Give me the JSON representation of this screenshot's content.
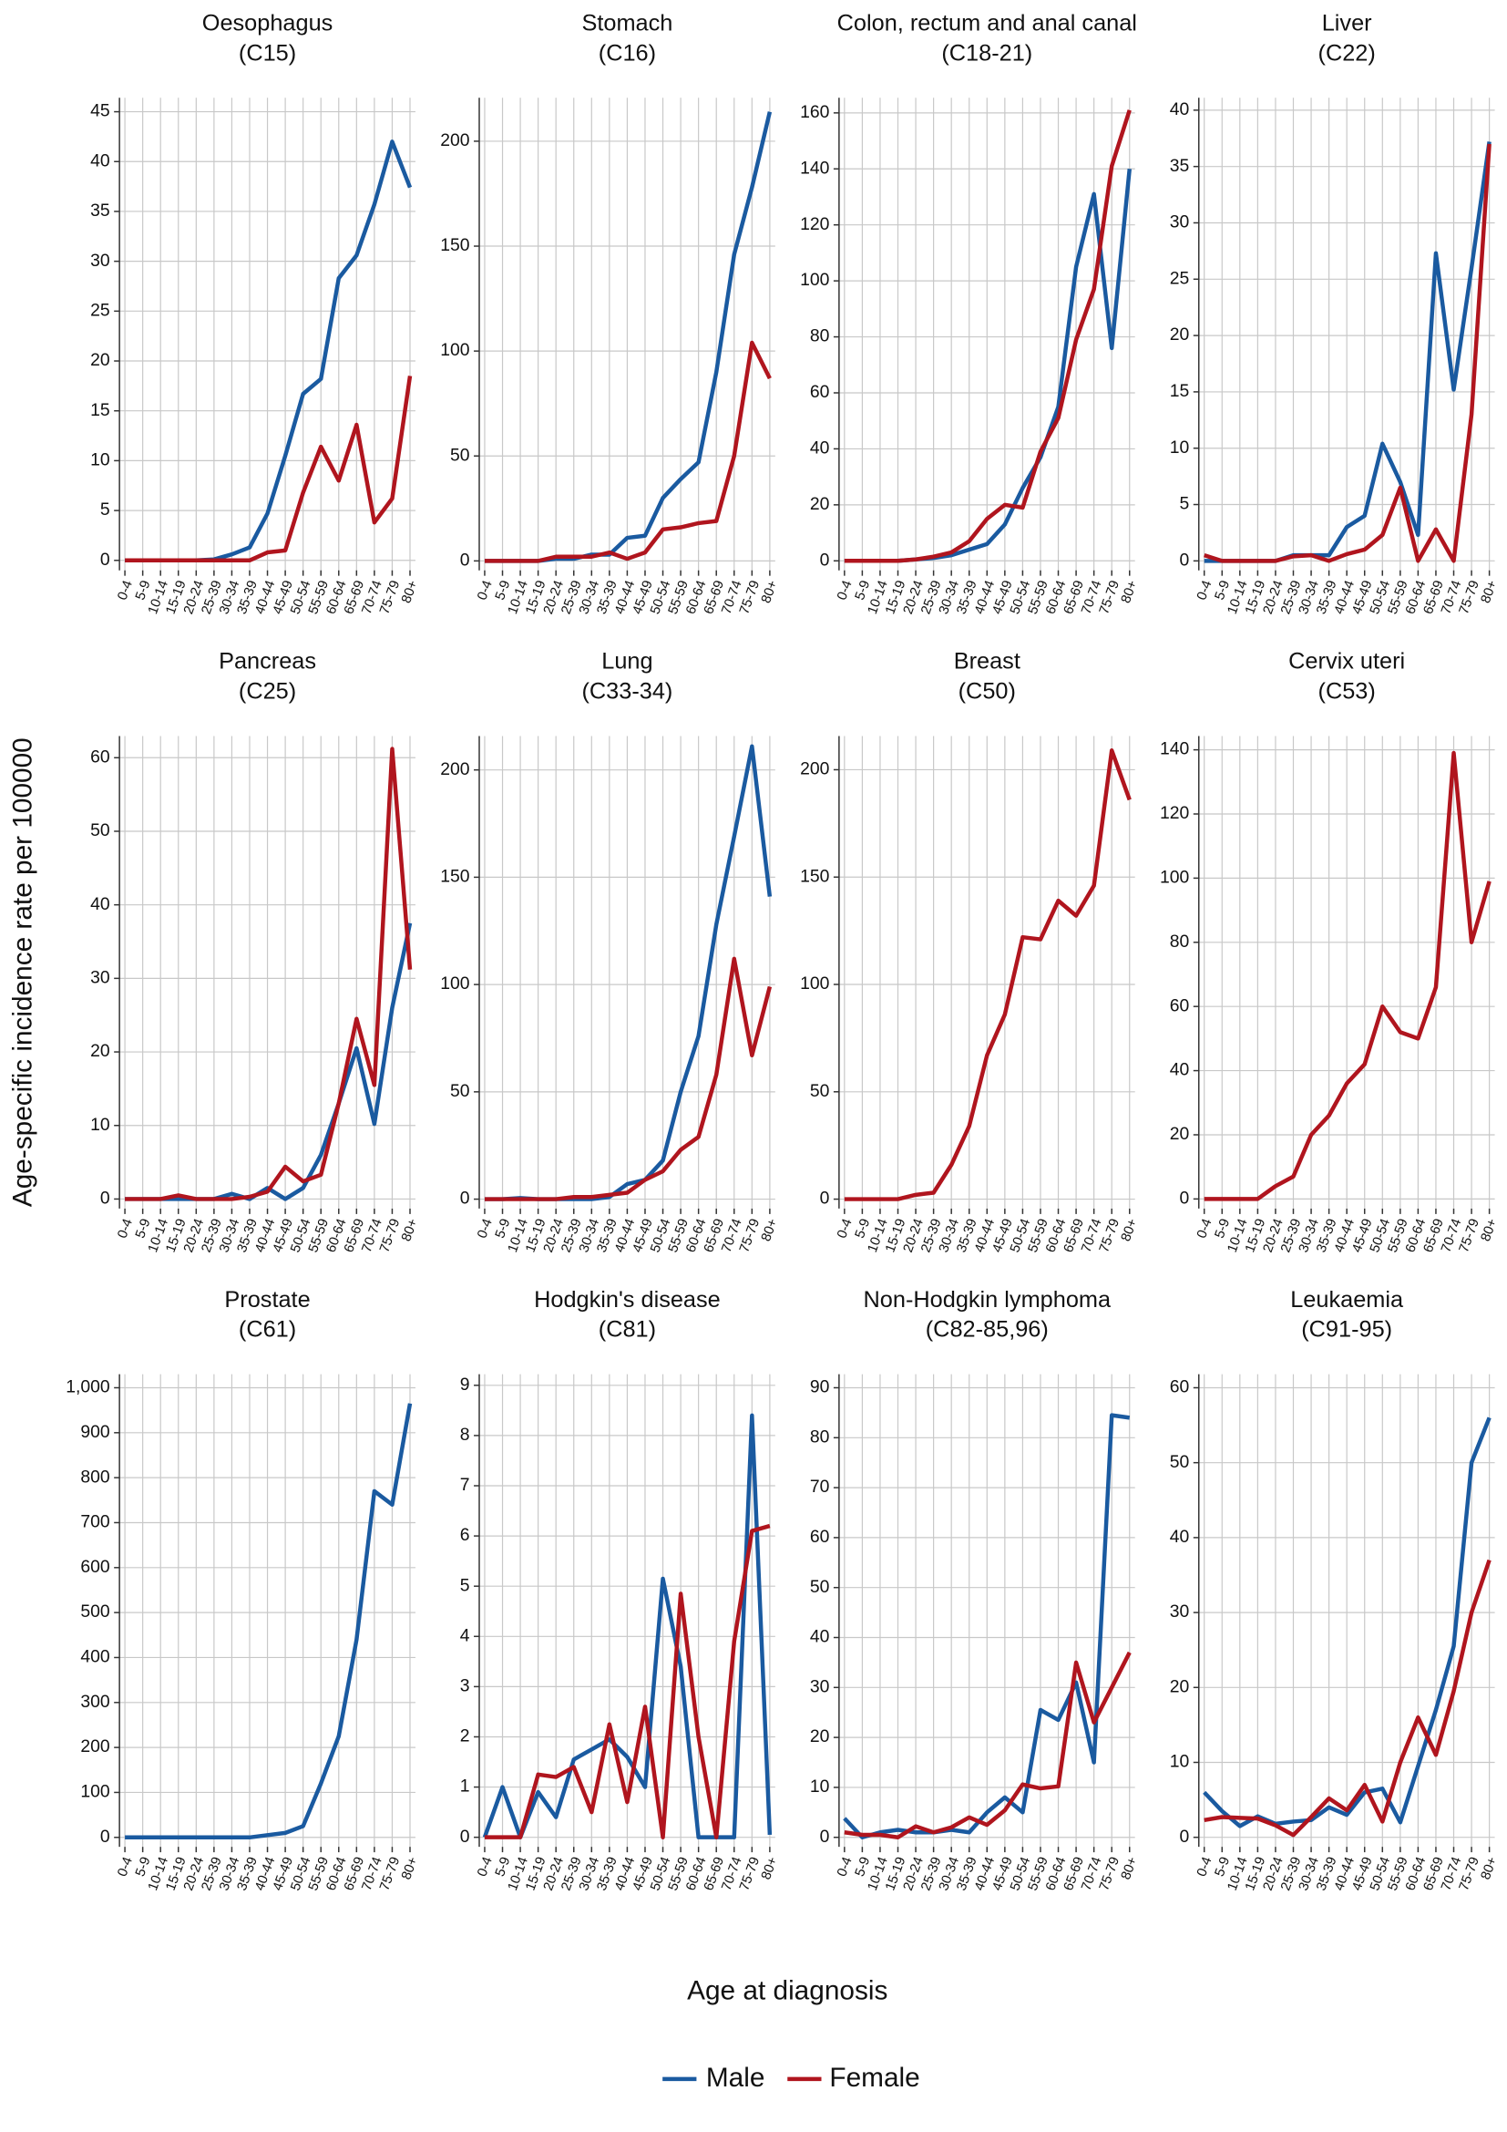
{
  "ylabel": "Age-specific incidence rate per 100000",
  "xlabel": "Age at diagnosis",
  "chart_data": [
    {
      "type": "line",
      "title": "Oesophagus",
      "subtitle": "(C15)",
      "categories": [
        "0-4",
        "5-9",
        "10-14",
        "15-19",
        "20-24",
        "25-39",
        "30-34",
        "35-39",
        "40-44",
        "45-49",
        "50-54",
        "55-59",
        "60-64",
        "65-69",
        "70-74",
        "75-79",
        "80+"
      ],
      "series": [
        {
          "name": "Male",
          "color": "#1a5aa0",
          "values": [
            0,
            0,
            0,
            0,
            0,
            0.1,
            0.6,
            1.3,
            4.7,
            10.5,
            16.7,
            18.2,
            28.3,
            30.6,
            35.7,
            42,
            37.4
          ]
        },
        {
          "name": "Female",
          "color": "#b0151e",
          "values": [
            0,
            0,
            0,
            0,
            0,
            0,
            0,
            0,
            0.8,
            1,
            6.8,
            11.4,
            8,
            13.6,
            3.8,
            6.2,
            18.5
          ]
        }
      ],
      "ylim": [
        -1,
        46.4
      ],
      "yticks": [
        0,
        5,
        10,
        15,
        20,
        25,
        30,
        35,
        40,
        45
      ],
      "grid": true
    },
    {
      "type": "line",
      "title": "Stomach",
      "subtitle": "(C16)",
      "categories": [
        "0-4",
        "5-9",
        "10-14",
        "15-19",
        "20-24",
        "25-39",
        "30-34",
        "35-39",
        "40-44",
        "45-49",
        "50-54",
        "55-59",
        "60-64",
        "65-69",
        "70-74",
        "75-79",
        "80+"
      ],
      "series": [
        {
          "name": "Male",
          "color": "#1a5aa0",
          "values": [
            0,
            0,
            0,
            0,
            1,
            1,
            3,
            3,
            11,
            12,
            30,
            39,
            47,
            90,
            146,
            178,
            214
          ]
        },
        {
          "name": "Female",
          "color": "#b0151e",
          "values": [
            0,
            0,
            0,
            0,
            2,
            2,
            2,
            4,
            1,
            4,
            15,
            16,
            18,
            19,
            50,
            104,
            87
          ]
        }
      ],
      "ylim": [
        -4.5,
        220.7
      ],
      "yticks": [
        0,
        50,
        100,
        150,
        200
      ],
      "grid": true
    },
    {
      "type": "line",
      "title": "Colon, rectum and anal canal",
      "subtitle": "(C18-21)",
      "categories": [
        "0-4",
        "5-9",
        "10-14",
        "15-19",
        "20-24",
        "25-39",
        "30-34",
        "35-39",
        "40-44",
        "45-49",
        "50-54",
        "55-59",
        "60-64",
        "65-69",
        "70-74",
        "75-79",
        "80+"
      ],
      "series": [
        {
          "name": "Male",
          "color": "#1a5aa0",
          "values": [
            0,
            0,
            0,
            0,
            0.5,
            1,
            2,
            4,
            6,
            13,
            26,
            37,
            55,
            105,
            131,
            76,
            140
          ]
        },
        {
          "name": "Female",
          "color": "#b0151e",
          "values": [
            0,
            0,
            0,
            0,
            0.5,
            1.5,
            3,
            7,
            15,
            20,
            19,
            39,
            51,
            79,
            97,
            141,
            161
          ]
        }
      ],
      "ylim": [
        -3.4,
        165.4
      ],
      "yticks": [
        0,
        20,
        40,
        60,
        80,
        100,
        120,
        140,
        160
      ],
      "grid": true
    },
    {
      "type": "line",
      "title": "Liver",
      "subtitle": "(C22)",
      "categories": [
        "0-4",
        "5-9",
        "10-14",
        "15-19",
        "20-24",
        "25-39",
        "30-34",
        "35-39",
        "40-44",
        "45-49",
        "50-54",
        "55-59",
        "60-64",
        "65-69",
        "70-74",
        "75-79",
        "80+"
      ],
      "series": [
        {
          "name": "Male",
          "color": "#1a5aa0",
          "values": [
            0,
            0,
            0,
            0,
            0,
            0.5,
            0.5,
            0.5,
            3,
            4,
            10.4,
            7,
            2.3,
            27.3,
            15.2,
            26,
            37.2
          ]
        },
        {
          "name": "Female",
          "color": "#b0151e",
          "values": [
            0.5,
            0,
            0,
            0,
            0,
            0.4,
            0.5,
            0,
            0.6,
            1,
            2.3,
            6.5,
            0,
            2.8,
            0,
            13,
            37
          ]
        }
      ],
      "ylim": [
        -0.84,
        41.1
      ],
      "yticks": [
        0,
        5,
        10,
        15,
        20,
        25,
        30,
        35,
        40
      ],
      "grid": true
    },
    {
      "type": "line",
      "title": "Pancreas",
      "subtitle": "(C25)",
      "categories": [
        "0-4",
        "5-9",
        "10-14",
        "15-19",
        "20-24",
        "25-39",
        "30-34",
        "35-39",
        "40-44",
        "45-49",
        "50-54",
        "55-59",
        "60-64",
        "65-69",
        "70-74",
        "75-79",
        "80+"
      ],
      "series": [
        {
          "name": "Male",
          "color": "#1a5aa0",
          "values": [
            0,
            0,
            0,
            0,
            0,
            0,
            0.7,
            0,
            1.5,
            0,
            1.5,
            6,
            13,
            20.5,
            10.2,
            26,
            37.5
          ]
        },
        {
          "name": "Female",
          "color": "#b0151e",
          "values": [
            0,
            0,
            0,
            0.5,
            0,
            0,
            0,
            0.3,
            1,
            4.4,
            2.4,
            3.3,
            13,
            24.5,
            15.5,
            61.2,
            31.2
          ]
        }
      ],
      "ylim": [
        -1.3,
        62.95
      ],
      "yticks": [
        0,
        10,
        20,
        30,
        40,
        50,
        60
      ],
      "grid": true
    },
    {
      "type": "line",
      "title": "Lung",
      "subtitle": "(C33-34)",
      "categories": [
        "0-4",
        "5-9",
        "10-14",
        "15-19",
        "20-24",
        "25-39",
        "30-34",
        "35-39",
        "40-44",
        "45-49",
        "50-54",
        "55-59",
        "60-64",
        "65-69",
        "70-74",
        "75-79",
        "80+"
      ],
      "series": [
        {
          "name": "Male",
          "color": "#1a5aa0",
          "values": [
            0,
            0,
            0.5,
            0,
            0,
            0,
            0,
            1,
            7,
            9,
            18,
            50,
            76,
            128,
            169,
            211,
            141
          ]
        },
        {
          "name": "Female",
          "color": "#b0151e",
          "values": [
            0,
            0,
            0,
            0,
            0,
            1,
            1,
            2,
            3,
            9,
            13,
            23,
            29,
            58,
            112,
            67,
            99
          ]
        }
      ],
      "ylim": [
        -4.4,
        215.8
      ],
      "yticks": [
        0,
        50,
        100,
        150,
        200
      ],
      "grid": true
    },
    {
      "type": "line",
      "title": "Breast",
      "subtitle": "(C50)",
      "categories": [
        "0-4",
        "5-9",
        "10-14",
        "15-19",
        "20-24",
        "25-39",
        "30-34",
        "35-39",
        "40-44",
        "45-49",
        "50-54",
        "55-59",
        "60-64",
        "65-69",
        "70-74",
        "75-79",
        "80+"
      ],
      "series": [
        {
          "name": "Female",
          "color": "#b0151e",
          "values": [
            0,
            0,
            0,
            0,
            2,
            3,
            16,
            34,
            67,
            86,
            122,
            121,
            139,
            132,
            146,
            209,
            186
          ]
        }
      ],
      "ylim": [
        -4.4,
        215.7
      ],
      "yticks": [
        0,
        50,
        100,
        150,
        200
      ],
      "grid": true
    },
    {
      "type": "line",
      "title": "Cervix uteri",
      "subtitle": "(C53)",
      "categories": [
        "0-4",
        "5-9",
        "10-14",
        "15-19",
        "20-24",
        "25-39",
        "30-34",
        "35-39",
        "40-44",
        "45-49",
        "50-54",
        "55-59",
        "60-64",
        "65-69",
        "70-74",
        "75-79",
        "80+"
      ],
      "series": [
        {
          "name": "Female",
          "color": "#b0151e",
          "values": [
            0,
            0,
            0,
            0,
            4,
            7,
            20,
            26,
            36,
            42,
            60,
            52,
            50,
            66,
            139,
            80,
            99
          ]
        }
      ],
      "ylim": [
        -3,
        144.3
      ],
      "yticks": [
        0,
        20,
        40,
        60,
        80,
        100,
        120,
        140
      ],
      "grid": true
    },
    {
      "type": "line",
      "title": "Prostate",
      "subtitle": "(C61)",
      "categories": [
        "0-4",
        "5-9",
        "10-14",
        "15-19",
        "20-24",
        "25-39",
        "30-34",
        "35-39",
        "40-44",
        "45-49",
        "50-54",
        "55-59",
        "60-64",
        "65-69",
        "70-74",
        "75-79",
        "80+"
      ],
      "series": [
        {
          "name": "Male",
          "color": "#1a5aa0",
          "values": [
            0,
            0,
            0,
            0,
            0,
            0,
            0,
            0,
            5,
            10,
            25,
            120,
            225,
            440,
            770,
            740,
            965
          ]
        }
      ],
      "ylim": [
        -21,
        1030
      ],
      "yticks": [
        0,
        100,
        200,
        300,
        400,
        500,
        600,
        700,
        800,
        900,
        {
          "value": 1000,
          "label": "1,000"
        }
      ],
      "grid": true
    },
    {
      "type": "line",
      "title": "Hodgkin's disease",
      "subtitle": "(C81)",
      "categories": [
        "0-4",
        "5-9",
        "10-14",
        "15-19",
        "20-24",
        "25-39",
        "30-34",
        "35-39",
        "40-44",
        "45-49",
        "50-54",
        "55-59",
        "60-64",
        "65-69",
        "70-74",
        "75-79",
        "80+"
      ],
      "series": [
        {
          "name": "Male",
          "color": "#1a5aa0",
          "values": [
            0,
            1,
            0,
            0.9,
            0.4,
            1.55,
            1.75,
            1.95,
            1.6,
            1,
            5.15,
            3.4,
            0,
            0,
            0,
            8.4,
            0.05
          ]
        },
        {
          "name": "Female",
          "color": "#b0151e",
          "values": [
            0,
            0,
            0,
            1.25,
            1.2,
            1.4,
            0.5,
            2.25,
            0.7,
            2.6,
            0,
            4.85,
            2,
            0,
            3.9,
            6.1,
            6.2
          ]
        }
      ],
      "ylim": [
        -0.19,
        9.22
      ],
      "yticks": [
        0,
        1,
        2,
        3,
        4,
        5,
        6,
        7,
        8,
        9
      ],
      "grid": true
    },
    {
      "type": "line",
      "title": "Non-Hodgkin lymphoma",
      "subtitle": "(C82-85,96)",
      "categories": [
        "0-4",
        "5-9",
        "10-14",
        "15-19",
        "20-24",
        "25-39",
        "30-34",
        "35-39",
        "40-44",
        "45-49",
        "50-54",
        "55-59",
        "60-64",
        "65-69",
        "70-74",
        "75-79",
        "80+"
      ],
      "series": [
        {
          "name": "Male",
          "color": "#1a5aa0",
          "values": [
            3.8,
            0,
            1,
            1.5,
            1,
            1,
            1.5,
            1,
            5,
            8,
            5,
            25.5,
            23.5,
            31,
            15,
            84.5,
            84
          ]
        },
        {
          "name": "Female",
          "color": "#b0151e",
          "values": [
            1,
            0.5,
            0.5,
            0,
            2.2,
            1,
            2,
            4,
            2.5,
            5.4,
            10.6,
            9.8,
            10.2,
            35,
            23,
            30,
            37
          ]
        }
      ],
      "ylim": [
        -1.9,
        92.7
      ],
      "yticks": [
        0,
        10,
        20,
        30,
        40,
        50,
        60,
        70,
        80,
        90
      ],
      "grid": true
    },
    {
      "type": "line",
      "title": "Leukaemia",
      "subtitle": "(C91-95)",
      "categories": [
        "0-4",
        "5-9",
        "10-14",
        "15-19",
        "20-24",
        "25-39",
        "30-34",
        "35-39",
        "40-44",
        "45-49",
        "50-54",
        "55-59",
        "60-64",
        "65-69",
        "70-74",
        "75-79",
        "80+"
      ],
      "series": [
        {
          "name": "Male",
          "color": "#1a5aa0",
          "values": [
            6,
            3.5,
            1.5,
            2.8,
            1.8,
            2.1,
            2.3,
            4,
            3,
            6,
            6.5,
            2,
            9.5,
            17,
            25.5,
            50,
            56
          ]
        },
        {
          "name": "Female",
          "color": "#b0151e",
          "values": [
            2.3,
            2.7,
            2.6,
            2.5,
            1.6,
            0.3,
            2.7,
            5.2,
            3.6,
            7,
            2.1,
            10,
            16,
            11,
            19.5,
            30,
            37
          ]
        }
      ],
      "ylim": [
        -1.27,
        61.8
      ],
      "yticks": [
        0,
        10,
        20,
        30,
        40,
        50,
        60
      ],
      "grid": true
    }
  ]
}
